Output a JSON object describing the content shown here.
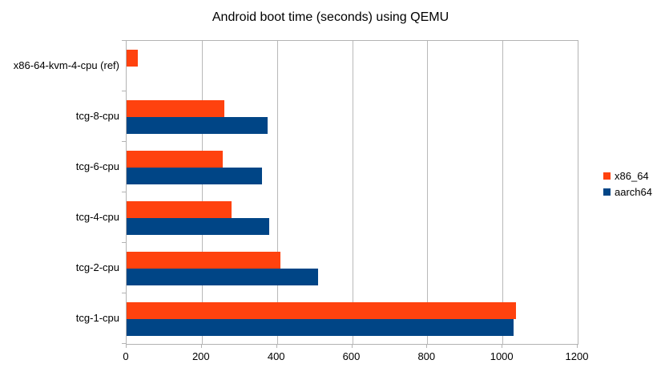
{
  "chart_data": {
    "type": "bar",
    "orientation": "horizontal",
    "title": "Android boot time (seconds) using QEMU",
    "categories": [
      "x86-64-kvm-4-cpu (ref)",
      "tcg-8-cpu",
      "tcg-6-cpu",
      "tcg-4-cpu",
      "tcg-2-cpu",
      "tcg-1-cpu"
    ],
    "series": [
      {
        "name": "x86_64",
        "color": "#ff420e",
        "values": [
          30,
          260,
          255,
          280,
          410,
          1035
        ]
      },
      {
        "name": "aarch64",
        "color": "#004586",
        "values": [
          null,
          375,
          360,
          380,
          510,
          1030
        ]
      }
    ],
    "x_axis": {
      "min": 0,
      "max": 1200,
      "tick_interval": 200,
      "tick_labels": [
        "0",
        "200",
        "400",
        "600",
        "800",
        "1000",
        "1200"
      ]
    },
    "legend_position": "right",
    "grid": "vertical-only",
    "colors": {
      "background": "#ffffff",
      "gridline": "#b9b9b9",
      "axis": "#b3b3b3",
      "text": "#000000"
    }
  }
}
